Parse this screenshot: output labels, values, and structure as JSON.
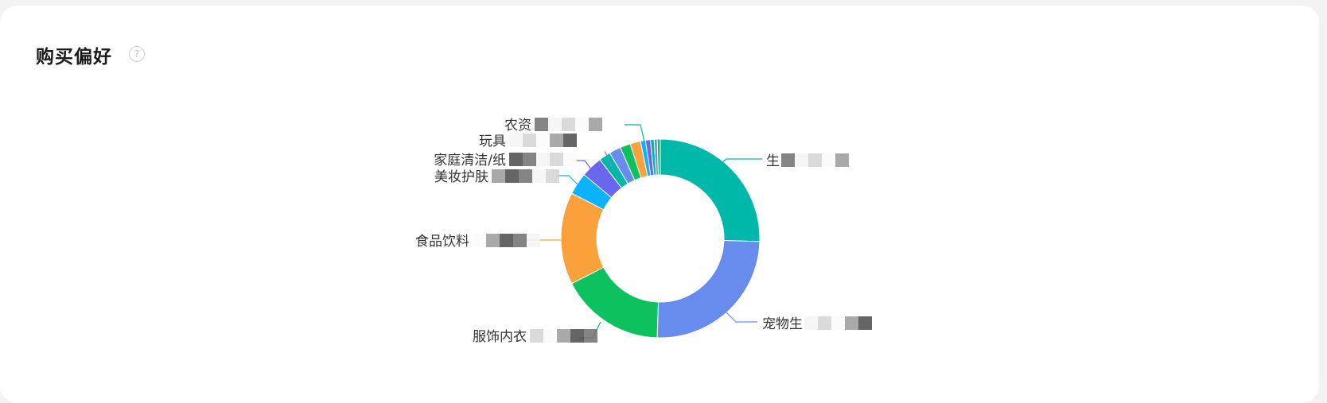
{
  "header": {
    "title": "购买偏好",
    "help_icon": "question-circle-icon"
  },
  "chart_data": {
    "type": "pie",
    "variant": "donut",
    "title": "",
    "legend": "none",
    "labels_visible": [
      "生",
      "宠物生",
      "服饰内衣",
      "食品饮料",
      "美妆护肤",
      "家庭清洁/纸",
      "",
      "玩具",
      "",
      "",
      "",
      "",
      "农资",
      "",
      ""
    ],
    "values": [
      25.5,
      25,
      17,
      15,
      3.6,
      3.5,
      1.9,
      1.9,
      1.7,
      1.7,
      0.8,
      0.8,
      0.6,
      0.5,
      0.5
    ],
    "colors": [
      "#00B8A9",
      "#688CEE",
      "#0CC15E",
      "#FAA13C",
      "#0AB2FF",
      "#6967EE",
      "#00B8A9",
      "#688CEE",
      "#0CC15E",
      "#FAA13C",
      "#0AB2FF",
      "#6967EE",
      "#00B8A9",
      "#688CEE",
      "#0CC15E"
    ],
    "note_values": "estimated from slice angles; labels partially obscured by mosaic"
  }
}
